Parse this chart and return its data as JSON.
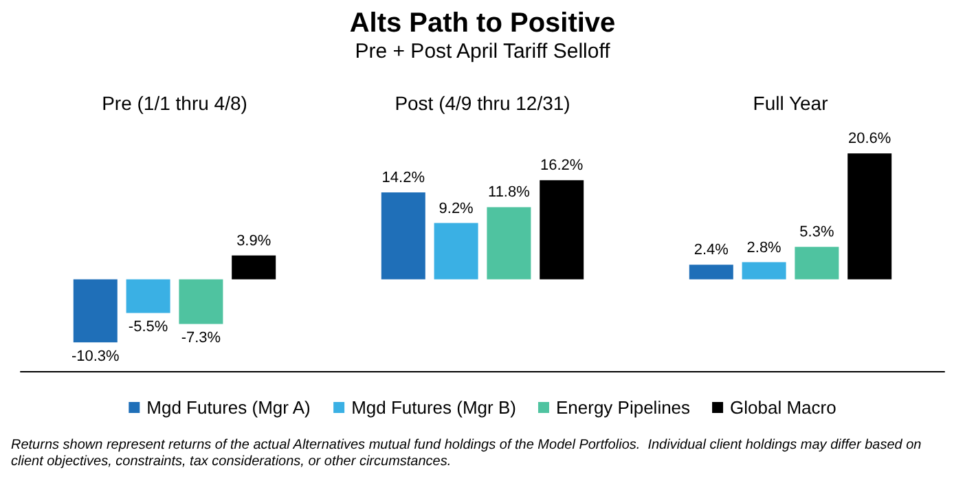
{
  "chart_data": {
    "type": "bar",
    "title": "Alts Path to Positive",
    "subtitle": "Pre + Post April Tariff Selloff",
    "categories": [
      "Pre (1/1 thru 4/8)",
      "Post (4/9 thru 12/31)",
      "Full Year"
    ],
    "series": [
      {
        "name": "Mgd Futures (Mgr A)",
        "color": "#1f6fb8",
        "values": [
          -10.3,
          14.2,
          2.4
        ],
        "value_labels": [
          "-10.3%",
          "14.2%",
          "2.4%"
        ]
      },
      {
        "name": "Mgd Futures (Mgr B)",
        "color": "#3ab0e4",
        "values": [
          -5.5,
          9.2,
          2.8
        ],
        "value_labels": [
          "-5.5%",
          "9.2%",
          "2.8%"
        ]
      },
      {
        "name": "Energy Pipelines",
        "color": "#4fc3a0",
        "values": [
          -7.3,
          11.8,
          5.3
        ],
        "value_labels": [
          "-7.3%",
          "11.8%",
          "5.3%"
        ]
      },
      {
        "name": "Global Macro",
        "color": "#000000",
        "values": [
          3.9,
          16.2,
          20.6
        ],
        "value_labels": [
          "3.9%",
          "16.2%",
          "20.6%"
        ]
      }
    ],
    "legend": "bottom",
    "annotations": [
      "Returns shown represent returns of the actual Alternatives mutual fund holdings of the Model Portfolios.  Individual client holdings may differ based on client objectives, constraints, tax considerations, or other circumstances."
    ]
  }
}
